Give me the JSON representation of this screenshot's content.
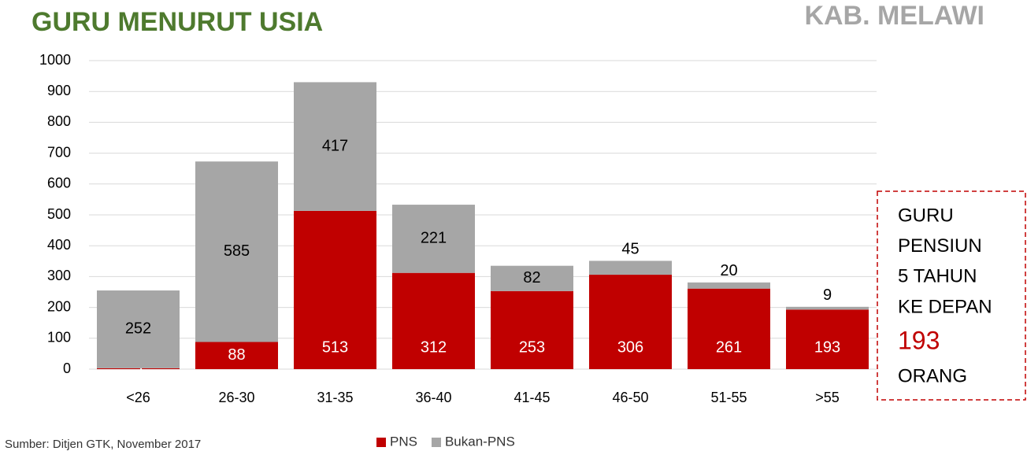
{
  "chart_data": {
    "type": "stacked_bar",
    "title": "GURU MENURUT USIA",
    "subtitle": "KAB. MELAWI",
    "source": "Sumber: Ditjen GTK, November 2017",
    "categories": [
      "<26",
      "26-30",
      "31-35",
      "36-40",
      "41-45",
      "46-50",
      "51-55",
      ">55"
    ],
    "series": [
      {
        "name": "PNS",
        "color": "#c00000",
        "values": [
          3,
          88,
          513,
          312,
          253,
          306,
          261,
          193
        ]
      },
      {
        "name": "Bukan-PNS",
        "color": "#a6a6a6",
        "values": [
          252,
          585,
          417,
          221,
          82,
          45,
          20,
          9
        ]
      }
    ],
    "ylim": [
      0,
      1000
    ],
    "yticks": [
      0,
      100,
      200,
      300,
      400,
      500,
      600,
      700,
      800,
      900,
      1000
    ],
    "grid": true,
    "legend": "bottom",
    "annotation": {
      "lines": [
        "GURU",
        "PENSIUN",
        "5 TAHUN",
        "KE DEPAN"
      ],
      "value": 193,
      "unit": "ORANG"
    }
  }
}
